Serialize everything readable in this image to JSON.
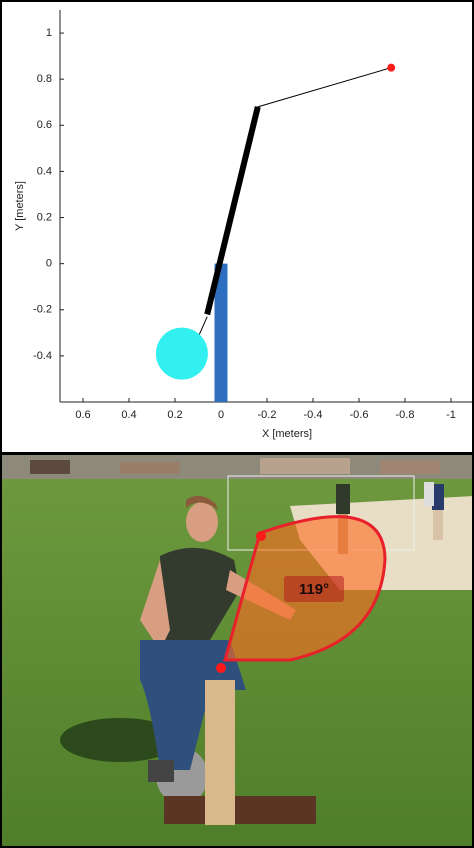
{
  "chart_data": {
    "type": "line",
    "xlabel": "X [meters]",
    "ylabel": "Y [meters]",
    "xlim": [
      0.7,
      -1.1
    ],
    "xticks": [
      0.6,
      0.4,
      0.2,
      0,
      -0.2,
      -0.4,
      -0.6,
      -0.8,
      -1
    ],
    "ylim": [
      -0.6,
      1.1
    ],
    "yticks": [
      1,
      0.8,
      0.6,
      0.4,
      0.2,
      0,
      -0.2,
      -0.4
    ],
    "series": [
      {
        "color": "#2f6fc0",
        "width": 13,
        "x": [
          0,
          0
        ],
        "values": [
          0,
          -0.6
        ]
      },
      {
        "color": "#000000",
        "width": 6,
        "x": [
          0.06,
          -0.16
        ],
        "values": [
          -0.22,
          0.68
        ]
      },
      {
        "color": "#000000",
        "width": 1,
        "x": [
          -0.16,
          -0.74
        ],
        "values": [
          0.68,
          0.85
        ]
      },
      {
        "color": "#000000",
        "width": 1,
        "x": [
          0.1,
          0.06
        ],
        "values": [
          -0.32,
          -0.23
        ]
      },
      {
        "color": "#ff1a1a",
        "marker": "dot",
        "x": [
          -0.74
        ],
        "values": [
          0.85
        ]
      },
      {
        "color": "#33f0f0",
        "marker": "disk",
        "x": [
          0.17
        ],
        "values": [
          -0.39
        ]
      }
    ]
  },
  "photo": {
    "angle_label": "119°"
  }
}
